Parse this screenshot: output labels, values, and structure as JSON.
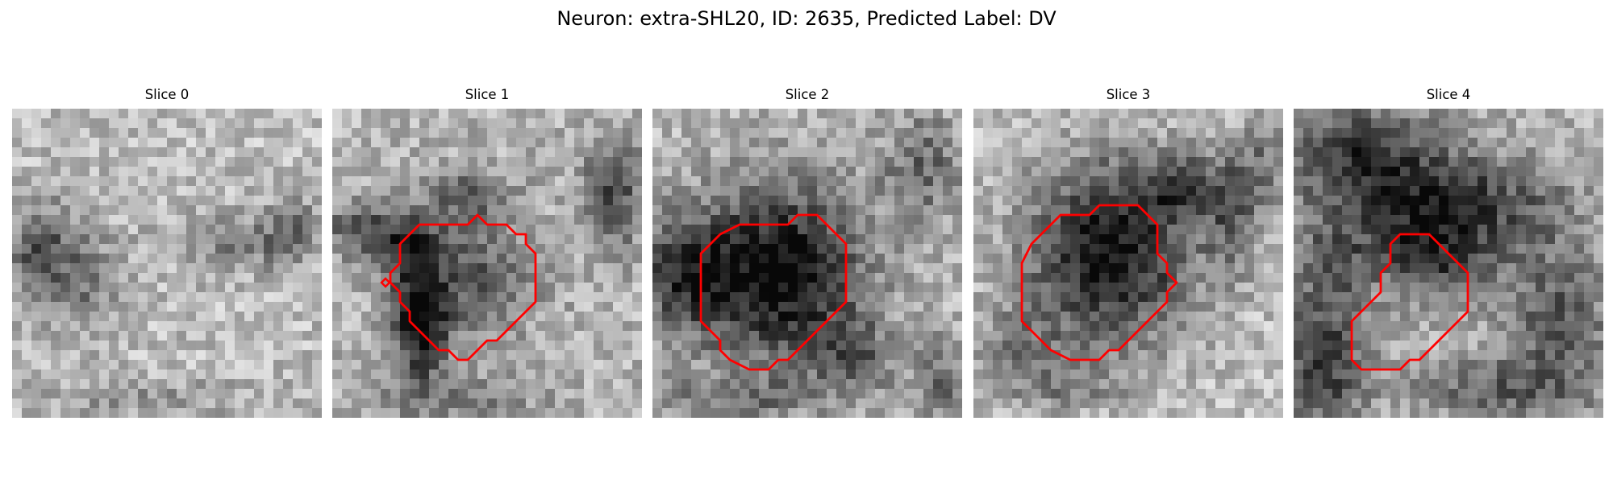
{
  "figure": {
    "title": "Neuron: extra-SHL20, ID: 2635, Predicted Label: DV"
  },
  "colors": {
    "contour": "#ff0000",
    "background": "#ffffff"
  },
  "panels": [
    {
      "title": "Slice 0",
      "image": "grayscale-microscopy-patch",
      "contour": []
    },
    {
      "title": "Slice 1",
      "image": "grayscale-microscopy-patch",
      "contour": [
        [
          13,
          12
        ],
        [
          14,
          12
        ],
        [
          15,
          11
        ],
        [
          16,
          12
        ],
        [
          18,
          12
        ],
        [
          19,
          13
        ],
        [
          20,
          13
        ],
        [
          20,
          14
        ],
        [
          21,
          15
        ],
        [
          21,
          20
        ],
        [
          20,
          21
        ],
        [
          19,
          22
        ],
        [
          18,
          23
        ],
        [
          17,
          24
        ],
        [
          16,
          24
        ],
        [
          15,
          25
        ],
        [
          14,
          26
        ],
        [
          13,
          26
        ],
        [
          12,
          25
        ],
        [
          11,
          25
        ],
        [
          10,
          24
        ],
        [
          9,
          23
        ],
        [
          8,
          22
        ],
        [
          8,
          21
        ],
        [
          7,
          20
        ],
        [
          7,
          19
        ],
        [
          6,
          18
        ],
        [
          6,
          17
        ],
        [
          7,
          16
        ],
        [
          7,
          14
        ],
        [
          8,
          13
        ],
        [
          9,
          12
        ]
      ],
      "marker": [
        5.5,
        18
      ]
    },
    {
      "title": "Slice 2",
      "image": "grayscale-microscopy-patch",
      "contour": [
        [
          9,
          12
        ],
        [
          14,
          12
        ],
        [
          15,
          11
        ],
        [
          17,
          11
        ],
        [
          18,
          12
        ],
        [
          19,
          13
        ],
        [
          20,
          14
        ],
        [
          20,
          20
        ],
        [
          19,
          21
        ],
        [
          18,
          22
        ],
        [
          17,
          23
        ],
        [
          16,
          24
        ],
        [
          15,
          25
        ],
        [
          14,
          26
        ],
        [
          13,
          26
        ],
        [
          12,
          27
        ],
        [
          10,
          27
        ],
        [
          8,
          26
        ],
        [
          7,
          25
        ],
        [
          7,
          24
        ],
        [
          6,
          23
        ],
        [
          5,
          22
        ],
        [
          5,
          15
        ],
        [
          6,
          14
        ],
        [
          7,
          13
        ]
      ]
    },
    {
      "title": "Slice 3",
      "image": "grayscale-microscopy-patch",
      "contour": [
        [
          11,
          11
        ],
        [
          12,
          11
        ],
        [
          13,
          10
        ],
        [
          17,
          10
        ],
        [
          18,
          11
        ],
        [
          19,
          12
        ],
        [
          19,
          15
        ],
        [
          20,
          16
        ],
        [
          20,
          17
        ],
        [
          21,
          18
        ],
        [
          20,
          19
        ],
        [
          20,
          20
        ],
        [
          19,
          21
        ],
        [
          18,
          22
        ],
        [
          17,
          23
        ],
        [
          16,
          24
        ],
        [
          15,
          25
        ],
        [
          14,
          25
        ],
        [
          13,
          26
        ],
        [
          10,
          26
        ],
        [
          8,
          25
        ],
        [
          7,
          24
        ],
        [
          6,
          23
        ],
        [
          5,
          22
        ],
        [
          5,
          16
        ],
        [
          6,
          14
        ],
        [
          7,
          13
        ],
        [
          8,
          12
        ],
        [
          9,
          11
        ]
      ]
    },
    {
      "title": "Slice 4",
      "image": "grayscale-microscopy-patch",
      "contour": [
        [
          11,
          13
        ],
        [
          14,
          13
        ],
        [
          15,
          14
        ],
        [
          16,
          15
        ],
        [
          17,
          16
        ],
        [
          18,
          17
        ],
        [
          18,
          21
        ],
        [
          17,
          22
        ],
        [
          16,
          23
        ],
        [
          15,
          24
        ],
        [
          14,
          25
        ],
        [
          13,
          26
        ],
        [
          12,
          26
        ],
        [
          11,
          27
        ],
        [
          7,
          27
        ],
        [
          6,
          26
        ],
        [
          6,
          22
        ],
        [
          7,
          21
        ],
        [
          8,
          20
        ],
        [
          9,
          19
        ],
        [
          9,
          17
        ],
        [
          10,
          16
        ],
        [
          10,
          14
        ]
      ]
    }
  ]
}
